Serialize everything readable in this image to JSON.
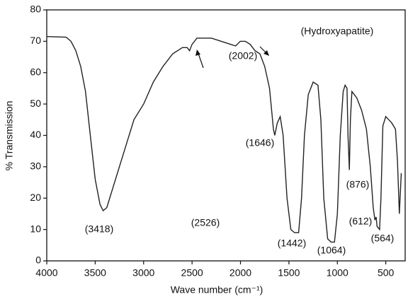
{
  "chart_data": {
    "type": "line",
    "xlabel": "Wave number (cm⁻¹)",
    "ylabel": "% Transmission",
    "xlim": [
      4000,
      300
    ],
    "ylim": [
      0,
      80
    ],
    "xticks": [
      4000,
      3500,
      3000,
      2500,
      2000,
      1500,
      1000,
      500
    ],
    "yticks": [
      0,
      10,
      20,
      30,
      40,
      50,
      60,
      70,
      80
    ],
    "sample_label": "(Hydroxyapatite)",
    "annotations": [
      "(3418)",
      "(2526)",
      "(2002)",
      "(1646)",
      "(1442)",
      "(1064)",
      "(876)",
      "(612)",
      "(564)"
    ],
    "series": [
      {
        "name": "Hydroxyapatite",
        "color": "#222222",
        "x": [
          4000,
          3800,
          3750,
          3700,
          3650,
          3600,
          3550,
          3500,
          3450,
          3418,
          3380,
          3300,
          3200,
          3100,
          3000,
          2900,
          2800,
          2700,
          2600,
          2550,
          2526,
          2500,
          2450,
          2300,
          2100,
          2050,
          2002,
          1950,
          1900,
          1850,
          1800,
          1750,
          1700,
          1660,
          1646,
          1620,
          1590,
          1560,
          1520,
          1480,
          1442,
          1400,
          1370,
          1340,
          1300,
          1250,
          1200,
          1170,
          1140,
          1100,
          1064,
          1030,
          1000,
          970,
          940,
          920,
          900,
          890,
          876,
          865,
          850,
          800,
          750,
          700,
          660,
          630,
          612,
          600,
          590,
          564,
          550,
          530,
          500,
          470,
          440,
          400,
          380,
          360,
          340
        ],
        "values": [
          71.5,
          71.3,
          70,
          67,
          62,
          54,
          40,
          26,
          18,
          16,
          17,
          25,
          35,
          45,
          50,
          57,
          62,
          66,
          68,
          68,
          67,
          69,
          71,
          71,
          69,
          68.5,
          70,
          70,
          69,
          67,
          66,
          62,
          55,
          42,
          40,
          44,
          46,
          40,
          20,
          10,
          9,
          9,
          20,
          40,
          53,
          57,
          56,
          45,
          20,
          7,
          6,
          6,
          15,
          40,
          54,
          56,
          55,
          40,
          29,
          45,
          54,
          52,
          48,
          42,
          30,
          17,
          13,
          14,
          11,
          10,
          20,
          43,
          46,
          45,
          44,
          42,
          32,
          15,
          28
        ]
      }
    ]
  }
}
